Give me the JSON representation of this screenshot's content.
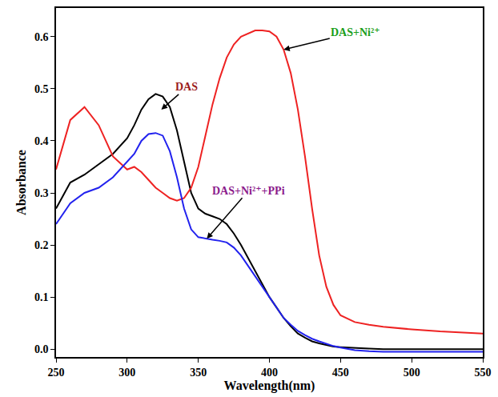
{
  "chart_data": {
    "type": "line",
    "x_label": "Wavelength(nm)",
    "y_label": "Absorbance",
    "x": [
      250,
      260,
      270,
      280,
      290,
      300,
      305,
      310,
      315,
      320,
      325,
      330,
      335,
      340,
      345,
      350,
      355,
      360,
      365,
      370,
      375,
      380,
      390,
      395,
      400,
      405,
      410,
      415,
      420,
      425,
      430,
      435,
      440,
      445,
      450,
      460,
      470,
      480,
      500,
      520,
      550
    ],
    "series": [
      {
        "name": "DAS",
        "color": "#000000",
        "values": [
          0.27,
          0.32,
          0.335,
          0.355,
          0.375,
          0.405,
          0.43,
          0.46,
          0.48,
          0.49,
          0.485,
          0.465,
          0.42,
          0.36,
          0.3,
          0.27,
          0.26,
          0.255,
          0.25,
          0.24,
          0.222,
          0.2,
          0.15,
          0.125,
          0.1,
          0.08,
          0.06,
          0.044,
          0.03,
          0.022,
          0.015,
          0.011,
          0.008,
          0.005,
          0.004,
          0.002,
          0.001,
          0,
          0,
          0,
          0
        ]
      },
      {
        "name": "DAS+Ni²⁺",
        "color": "#ee2222",
        "values": [
          0.345,
          0.44,
          0.465,
          0.43,
          0.37,
          0.345,
          0.35,
          0.34,
          0.325,
          0.31,
          0.3,
          0.29,
          0.285,
          0.29,
          0.31,
          0.35,
          0.41,
          0.47,
          0.52,
          0.56,
          0.585,
          0.6,
          0.612,
          0.612,
          0.61,
          0.6,
          0.575,
          0.53,
          0.46,
          0.37,
          0.27,
          0.18,
          0.12,
          0.085,
          0.065,
          0.052,
          0.047,
          0.043,
          0.038,
          0.034,
          0.03
        ]
      },
      {
        "name": "DAS+Ni²⁺+PPi",
        "color": "#2222ee",
        "values": [
          0.24,
          0.28,
          0.3,
          0.31,
          0.33,
          0.36,
          0.375,
          0.4,
          0.413,
          0.415,
          0.41,
          0.38,
          0.33,
          0.27,
          0.23,
          0.215,
          0.212,
          0.21,
          0.208,
          0.205,
          0.195,
          0.18,
          0.14,
          0.12,
          0.1,
          0.08,
          0.06,
          0.047,
          0.035,
          0.027,
          0.02,
          0.015,
          0.01,
          0.006,
          0.003,
          -0.002,
          -0.004,
          -0.005,
          -0.005,
          -0.005,
          -0.005
        ]
      }
    ],
    "xlim": [
      250,
      550
    ],
    "xticks": [
      250,
      300,
      350,
      400,
      450,
      500,
      550
    ],
    "ylim": [
      -0.015,
      0.655
    ],
    "yticks": [
      {
        "value": 0,
        "label": "0.0"
      },
      0.1,
      0.2,
      0.3,
      0.4,
      0.5,
      0.6
    ],
    "grid": false
  }
}
